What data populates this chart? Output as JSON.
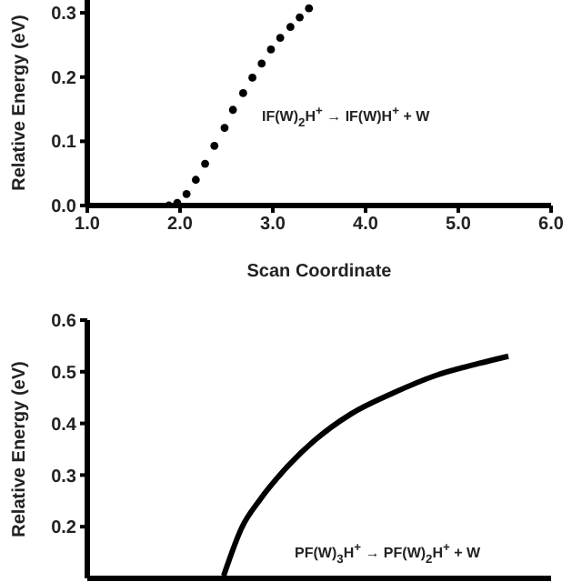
{
  "chart_data": [
    {
      "type": "scatter",
      "xlabel": "Scan Coordinate",
      "ylabel": "Relative Energy (eV)",
      "xlim": [
        1,
        6
      ],
      "xticks": [
        {
          "value": 1,
          "label": "1.0"
        },
        {
          "value": 2,
          "label": "2.0"
        },
        {
          "value": 3,
          "label": "3.0"
        },
        {
          "value": 4,
          "label": "4.0"
        },
        {
          "value": 5,
          "label": "5.0"
        },
        {
          "value": 6,
          "label": "6.0"
        }
      ],
      "ylim": [
        0,
        0.32
      ],
      "yticks": [
        {
          "value": 0,
          "label": "0.0"
        },
        0.1,
        0.2,
        0.3
      ],
      "marker": "circle",
      "grid": false,
      "legend": false,
      "series": [
        {
          "color": "#000000",
          "x": [
            1.88,
            1.97,
            2.07,
            2.17,
            2.27,
            2.37,
            2.48,
            2.57,
            2.68,
            2.78,
            2.88,
            2.98,
            3.08,
            3.19,
            3.29,
            3.39
          ],
          "values": [
            0,
            0.004,
            0.018,
            0.04,
            0.065,
            0.093,
            0.121,
            0.149,
            0.175,
            0.199,
            0.221,
            0.243,
            0.261,
            0.278,
            0.293,
            0.307
          ]
        }
      ],
      "annotations": [
        "IF(W)$_{2}$H$^{+}$ → IF(W)H$^{+}$ + W"
      ]
    },
    {
      "type": "line",
      "ylabel": "Relative Energy (eV)",
      "xlim": [
        1,
        6
      ],
      "ylim": [
        0.1,
        0.6
      ],
      "yticks": [
        0.2,
        0.3,
        0.4,
        0.5,
        0.6
      ],
      "tick_labels": "y",
      "marker": "none",
      "line_style": "solid",
      "grid": false,
      "legend": false,
      "series": [
        {
          "color": "#000000",
          "x": [
            2.47,
            2.67,
            2.86,
            3.12,
            3.45,
            3.84,
            4.3,
            4.76,
            5.22,
            5.54
          ],
          "values": [
            0.105,
            0.2,
            0.252,
            0.309,
            0.367,
            0.418,
            0.459,
            0.493,
            0.516,
            0.53
          ]
        }
      ],
      "annotations": [
        "PF(W)$_{3}$H$^{+}$ → PF(W)$_{2}$H$^{+}$ + W"
      ]
    }
  ]
}
